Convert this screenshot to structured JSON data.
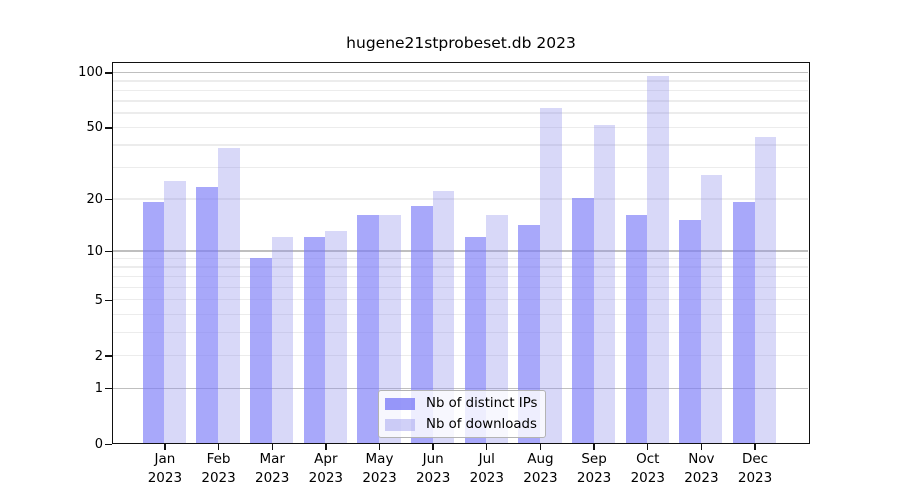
{
  "title": "hugene21stprobeset.db 2023",
  "colors": {
    "ips_bar": "rgba(123,123,247,0.66)",
    "downloads_bar": "rgba(144,144,235,0.35)",
    "ips_solid": "#a8a8fa",
    "downloads_solid": "#d8d8f8",
    "grid_major": "#bfbfbf",
    "grid_minor": "#ececec",
    "axis": "#111111"
  },
  "legend": {
    "items": [
      {
        "label": "Nb of distinct IPs",
        "series": "ips"
      },
      {
        "label": "Nb of downloads",
        "series": "dl"
      }
    ]
  },
  "y_axis": {
    "ticks": [
      {
        "label": "100",
        "value": 100
      },
      {
        "label": "50",
        "value": 50
      },
      {
        "label": "20",
        "value": 20
      },
      {
        "label": "10",
        "value": 10
      },
      {
        "label": "5",
        "value": 5
      },
      {
        "label": "2",
        "value": 2
      },
      {
        "label": "1",
        "value": 1
      },
      {
        "label": "0",
        "value": 0
      }
    ],
    "major_gridlines": [
      1,
      10,
      100
    ],
    "minor_gridlines": [
      2,
      3,
      4,
      5,
      6,
      7,
      8,
      9,
      20,
      30,
      40,
      50,
      60,
      70,
      80,
      90
    ]
  },
  "x_axis": {
    "labels": [
      {
        "month": "Jan",
        "year": "2023"
      },
      {
        "month": "Feb",
        "year": "2023"
      },
      {
        "month": "Mar",
        "year": "2023"
      },
      {
        "month": "Apr",
        "year": "2023"
      },
      {
        "month": "May",
        "year": "2023"
      },
      {
        "month": "Jun",
        "year": "2023"
      },
      {
        "month": "Jul",
        "year": "2023"
      },
      {
        "month": "Aug",
        "year": "2023"
      },
      {
        "month": "Sep",
        "year": "2023"
      },
      {
        "month": "Oct",
        "year": "2023"
      },
      {
        "month": "Nov",
        "year": "2023"
      },
      {
        "month": "Dec",
        "year": "2023"
      }
    ]
  },
  "chart_data": {
    "type": "bar",
    "title": "hugene21stprobeset.db 2023",
    "categories": [
      "Jan 2023",
      "Feb 2023",
      "Mar 2023",
      "Apr 2023",
      "May 2023",
      "Jun 2023",
      "Jul 2023",
      "Aug 2023",
      "Sep 2023",
      "Oct 2023",
      "Nov 2023",
      "Dec 2023"
    ],
    "series": [
      {
        "name": "Nb of distinct IPs",
        "values": [
          19,
          23,
          9,
          12,
          16,
          18,
          12,
          14,
          20,
          16,
          15,
          19
        ]
      },
      {
        "name": "Nb of downloads",
        "values": [
          25,
          38,
          12,
          13,
          16,
          22,
          16,
          63,
          51,
          94,
          27,
          44
        ]
      }
    ],
    "xlabel": "",
    "ylabel": "",
    "ylim": [
      0,
      100
    ],
    "yscale": "log1p",
    "grid": true,
    "legend_position": "bottom-center-inside"
  }
}
